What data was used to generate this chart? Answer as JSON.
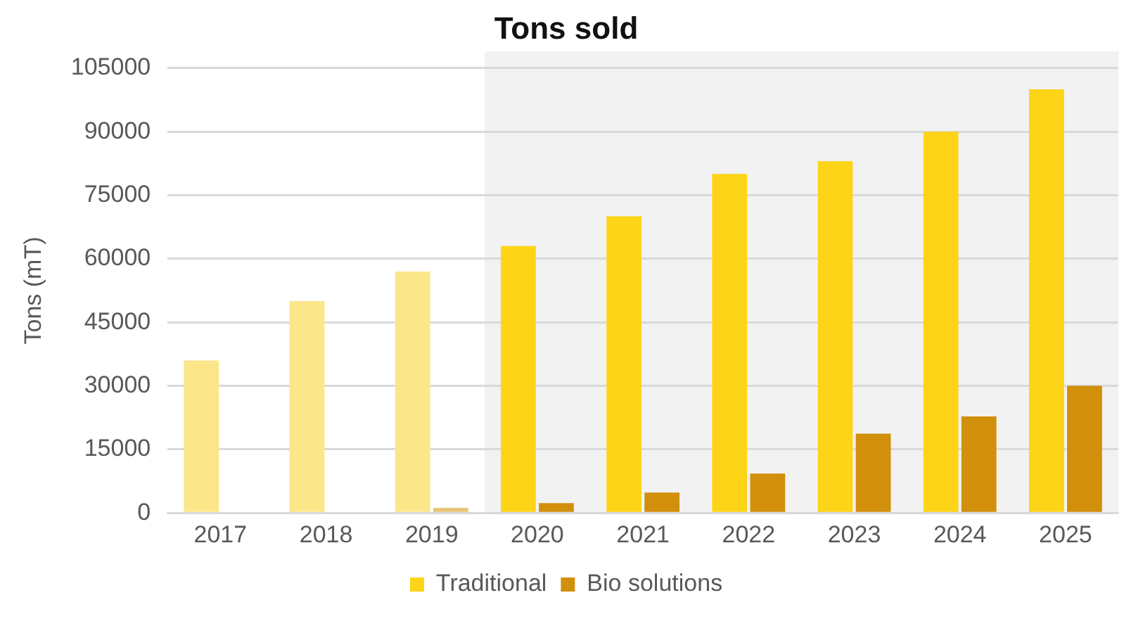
{
  "chart_data": {
    "type": "bar",
    "title": "Tons sold",
    "ylabel": "Tons (mT)",
    "categories": [
      "2017",
      "2018",
      "2019",
      "2020",
      "2021",
      "2022",
      "2023",
      "2024",
      "2025"
    ],
    "series": [
      {
        "name": "Traditional",
        "color": "#fdd417",
        "colors": [
          "#fce68a",
          "#fce68a",
          "#fce68a",
          "#fdd417",
          "#fdd417",
          "#fdd417",
          "#fdd417",
          "#fdd417",
          "#fdd417"
        ],
        "values": [
          36000,
          50000,
          57000,
          63000,
          70000,
          80000,
          83000,
          90000,
          100000
        ]
      },
      {
        "name": "Bio solutions",
        "color": "#d18f0b",
        "colors": [
          "#e8c477",
          "#e8c477",
          "#e8c477",
          "#d18f0b",
          "#d18f0b",
          "#d18f0b",
          "#d18f0b",
          "#d18f0b",
          "#d18f0b"
        ],
        "values": [
          null,
          null,
          1200,
          2300,
          4800,
          9300,
          18700,
          22800,
          30000
        ]
      }
    ],
    "ylim": [
      0,
      105000
    ],
    "yticks": [
      0,
      15000,
      30000,
      45000,
      60000,
      75000,
      90000,
      105000
    ],
    "grid": "y",
    "legend": "bottom",
    "bands": [
      {
        "axis": "x",
        "from": "2020",
        "to": "2025",
        "color": "#f2f2f2"
      }
    ]
  }
}
